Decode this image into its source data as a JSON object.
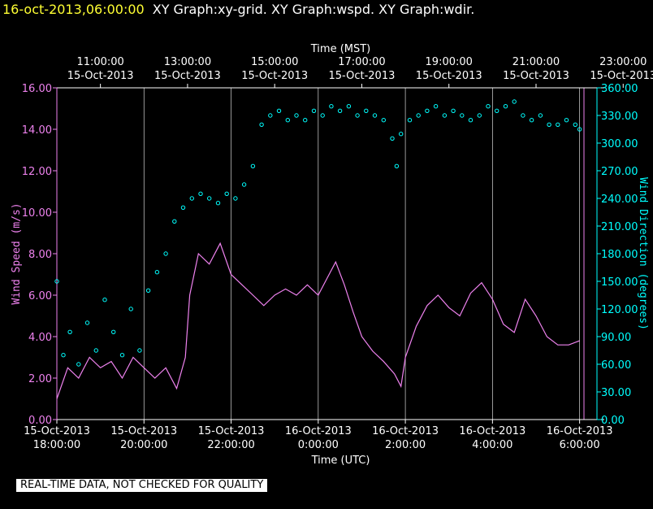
{
  "header": {
    "timestamp": "16-oct-2013,06:00:00",
    "graphs": "XY Graph:xy-grid.  XY Graph:wspd.  XY Graph:wdir."
  },
  "notice": "REAL-TIME DATA, NOT CHECKED FOR QUALITY",
  "colors": {
    "background": "#000000",
    "wspd": "#ee82ee",
    "wdir": "#00ffff",
    "grid": "#ffffff",
    "header": "#ffff33"
  },
  "chart_data": {
    "type": "line",
    "title": "XY Graph:xy-grid.  XY Graph:wspd.  XY Graph:wdir.",
    "x_top_label": "Time (MST)",
    "x_bottom_label": "Time (UTC)",
    "y_left_label": "Wind Speed (m/s)",
    "y_right_label": "Wind Direction (degrees)",
    "x_range_hours": [
      0,
      12.1
    ],
    "grid": true,
    "top_ticks": [
      {
        "h": 1,
        "time": "11:00:00",
        "date": "15-Oct-2013"
      },
      {
        "h": 3,
        "time": "13:00:00",
        "date": "15-Oct-2013"
      },
      {
        "h": 5,
        "time": "15:00:00",
        "date": "15-Oct-2013"
      },
      {
        "h": 7,
        "time": "17:00:00",
        "date": "15-Oct-2013"
      },
      {
        "h": 9,
        "time": "19:00:00",
        "date": "15-Oct-2013"
      },
      {
        "h": 11,
        "time": "21:00:00",
        "date": "15-Oct-2013"
      },
      {
        "h": 13,
        "time": "23:00:00",
        "date": "15-Oct-2013"
      }
    ],
    "bottom_ticks": [
      {
        "h": 0,
        "date": "15-Oct-2013",
        "time": "18:00:00"
      },
      {
        "h": 2,
        "date": "15-Oct-2013",
        "time": "20:00:00"
      },
      {
        "h": 4,
        "date": "15-Oct-2013",
        "time": "22:00:00"
      },
      {
        "h": 6,
        "date": "16-Oct-2013",
        "time": "0:00:00"
      },
      {
        "h": 8,
        "date": "16-Oct-2013",
        "time": "2:00:00"
      },
      {
        "h": 10,
        "date": "16-Oct-2013",
        "time": "4:00:00"
      },
      {
        "h": 12,
        "date": "16-Oct-2013",
        "time": "6:00:00"
      }
    ],
    "y_left": {
      "min": 0,
      "max": 16,
      "ticks": [
        "0.00",
        "2.00",
        "4.00",
        "6.00",
        "8.00",
        "10.00",
        "12.00",
        "14.00",
        "16.00"
      ]
    },
    "y_right": {
      "min": 0,
      "max": 360,
      "ticks": [
        "0.00",
        "30.00",
        "60.00",
        "90.00",
        "120.00",
        "150.00",
        "180.00",
        "210.00",
        "240.00",
        "270.00",
        "300.00",
        "330.00",
        "360.00"
      ]
    },
    "series": [
      {
        "name": "wspd",
        "color": "#ee82ee",
        "style": "line",
        "x": [
          0,
          0.25,
          0.5,
          0.75,
          1,
          1.25,
          1.5,
          1.75,
          2,
          2.25,
          2.5,
          2.75,
          2.95,
          3.05,
          3.25,
          3.5,
          3.75,
          4,
          4.25,
          4.5,
          4.75,
          5,
          5.25,
          5.5,
          5.75,
          6,
          6.2,
          6.4,
          6.6,
          6.8,
          7,
          7.25,
          7.5,
          7.75,
          7.9,
          8,
          8.25,
          8.5,
          8.75,
          9,
          9.25,
          9.5,
          9.75,
          10,
          10.25,
          10.5,
          10.75,
          11,
          11.25,
          11.5,
          11.75,
          12
        ],
        "y": [
          1.0,
          2.5,
          2.0,
          3.0,
          2.5,
          2.8,
          2.0,
          3.0,
          2.5,
          2.0,
          2.5,
          1.5,
          3.0,
          6.0,
          8.0,
          7.5,
          8.5,
          7.0,
          6.5,
          6.0,
          5.5,
          6.0,
          6.3,
          6.0,
          6.5,
          6.0,
          6.8,
          7.6,
          6.5,
          5.2,
          4.0,
          3.3,
          2.8,
          2.2,
          1.6,
          3.0,
          4.5,
          5.5,
          6.0,
          5.4,
          5.0,
          6.1,
          6.6,
          5.8,
          4.6,
          4.2,
          5.8,
          5.0,
          4.0,
          3.6,
          3.6,
          3.8
        ]
      },
      {
        "name": "wdir",
        "color": "#00ffff",
        "style": "markers",
        "x": [
          0,
          0.15,
          0.3,
          0.5,
          0.7,
          0.9,
          1.1,
          1.3,
          1.5,
          1.7,
          1.9,
          2.1,
          2.3,
          2.5,
          2.7,
          2.9,
          3.1,
          3.3,
          3.5,
          3.7,
          3.9,
          4.1,
          4.3,
          4.5,
          4.7,
          4.9,
          5.1,
          5.3,
          5.5,
          5.7,
          5.9,
          6.1,
          6.3,
          6.5,
          6.7,
          6.9,
          7.1,
          7.3,
          7.5,
          7.7,
          7.8,
          7.9,
          8.1,
          8.3,
          8.5,
          8.7,
          8.9,
          9.1,
          9.3,
          9.5,
          9.7,
          9.9,
          10.1,
          10.3,
          10.5,
          10.7,
          10.9,
          11.1,
          11.3,
          11.5,
          11.7,
          11.9,
          12
        ],
        "y": [
          150,
          70,
          95,
          60,
          105,
          75,
          130,
          95,
          70,
          120,
          75,
          140,
          160,
          180,
          215,
          230,
          240,
          245,
          240,
          235,
          245,
          240,
          255,
          275,
          320,
          330,
          335,
          325,
          330,
          325,
          335,
          330,
          340,
          335,
          340,
          330,
          335,
          330,
          325,
          305,
          275,
          310,
          325,
          330,
          335,
          340,
          330,
          335,
          330,
          325,
          330,
          340,
          335,
          340,
          345,
          330,
          325,
          330,
          320,
          320,
          325,
          320,
          315
        ]
      }
    ],
    "annotations": [
      "REAL-TIME DATA, NOT CHECKED FOR QUALITY"
    ]
  }
}
